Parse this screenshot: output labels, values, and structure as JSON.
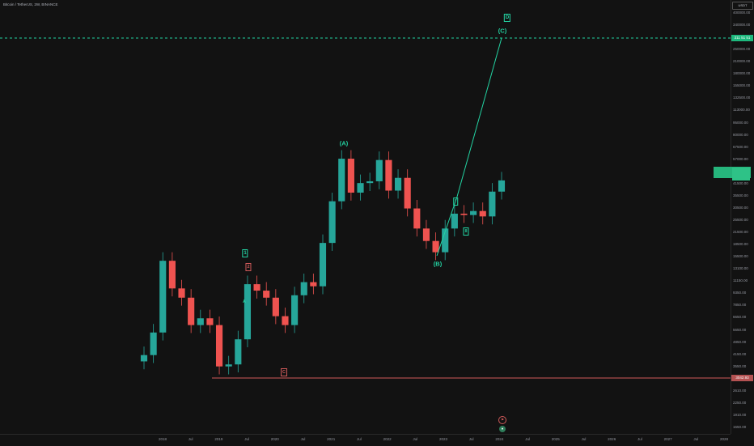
{
  "header": {
    "symbol_line": "Bitcoin / TetherUS, 2W, BINANCE"
  },
  "price_axis": {
    "currency": "USDT",
    "ticks": [
      "400000.00",
      "340000.00",
      "290000.00",
      "250000.00",
      "210000.00",
      "180000.00",
      "155000.00",
      "132500.00",
      "113000.00",
      "95000.00",
      "80000.00",
      "67500.00",
      "57000.00",
      "48500.00",
      "41500.00",
      "35500.00",
      "30500.00",
      "25500.00",
      "21500.00",
      "18500.00",
      "15500.00",
      "13100.00",
      "11150.00",
      "9350.00",
      "7850.00",
      "6650.00",
      "5650.00",
      "4850.00",
      "4150.00",
      "3550.00",
      "3050.00",
      "2610.00",
      "2250.00",
      "1910.00",
      "1650.00"
    ],
    "tags": {
      "target_price": "311 51 51",
      "support_price": "3042.93"
    }
  },
  "time_axis": {
    "ticks": [
      "2018",
      "Jul",
      "2019",
      "Jul",
      "2020",
      "Jul",
      "2021",
      "Jul",
      "2022",
      "Jul",
      "2023",
      "Jul",
      "2024",
      "Jul",
      "2025",
      "Jul",
      "2026",
      "Jul",
      "2027",
      "Jul",
      "2028"
    ]
  },
  "annotations": {
    "wave_A_major": "(A)",
    "wave_B_major": "(B)",
    "wave_C_major": "(C)",
    "wave_D": "D",
    "wave_1": "1",
    "wave_2": "2",
    "wave_a_small": "A",
    "wave_b_small": "B",
    "wave_c_small": "C",
    "wave_i": "I",
    "wave_ii": "II"
  },
  "colors": {
    "background": "#121212",
    "bull_candle": "#26a69a",
    "bear_candle": "#ef5350",
    "wave_line": "#23d4a3",
    "support_line": "#d05a5a",
    "target_line": "#23d4a3"
  },
  "chart_data": {
    "type": "candlestick",
    "interval": "2W",
    "scale": "log",
    "ylim": [
      1650,
      400000
    ],
    "symbol": "Bitcoin / TetherUS",
    "series": [
      {
        "name": "BTCUSDT",
        "x": [
          "2017-08",
          "2017-10",
          "2017-12",
          "2018-02",
          "2018-04",
          "2018-06",
          "2018-08",
          "2018-10",
          "2018-12",
          "2019-02",
          "2019-04",
          "2019-06",
          "2019-08",
          "2019-10",
          "2019-12",
          "2020-03",
          "2020-05",
          "2020-07",
          "2020-09",
          "2020-11",
          "2021-01",
          "2021-03",
          "2021-05",
          "2021-07",
          "2021-09",
          "2021-11",
          "2022-01",
          "2022-03",
          "2022-05",
          "2022-07",
          "2022-09",
          "2022-11",
          "2023-01",
          "2023-03",
          "2023-05",
          "2023-07",
          "2023-09",
          "2023-11",
          "2024-01"
        ],
        "close": [
          4300,
          5800,
          15000,
          10400,
          9200,
          6400,
          7000,
          6400,
          3700,
          3800,
          5300,
          11000,
          10100,
          9200,
          7200,
          6400,
          9500,
          11300,
          10700,
          19000,
          33000,
          58000,
          37000,
          42000,
          43000,
          57000,
          38000,
          45000,
          30000,
          23000,
          19500,
          16800,
          23000,
          28000,
          27500,
          29000,
          27000,
          37500,
          43500
        ]
      }
    ],
    "horizontal_lines": [
      {
        "label": "target",
        "value": 311515
      },
      {
        "label": "support",
        "value": 3043
      }
    ]
  }
}
